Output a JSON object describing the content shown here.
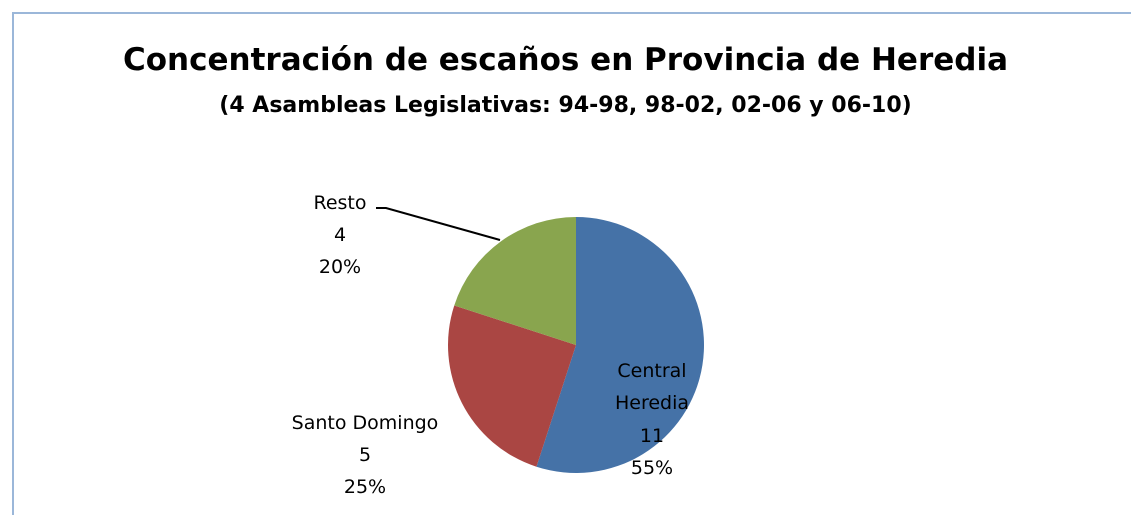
{
  "chart_data": {
    "type": "pie",
    "title": "Concentración de escaños en Provincia de Heredia",
    "subtitle": "(4 Asambleas Legislativas: 94-98, 98-02, 02-06 y 06-10)",
    "categories": [
      "Central Heredia",
      "Santo Domingo",
      "Resto"
    ],
    "values": [
      11,
      5,
      4
    ],
    "percent_labels": [
      "55%",
      "25%",
      "20%"
    ],
    "colors": [
      "#4572a7",
      "#aa4643",
      "#89a54e"
    ]
  }
}
